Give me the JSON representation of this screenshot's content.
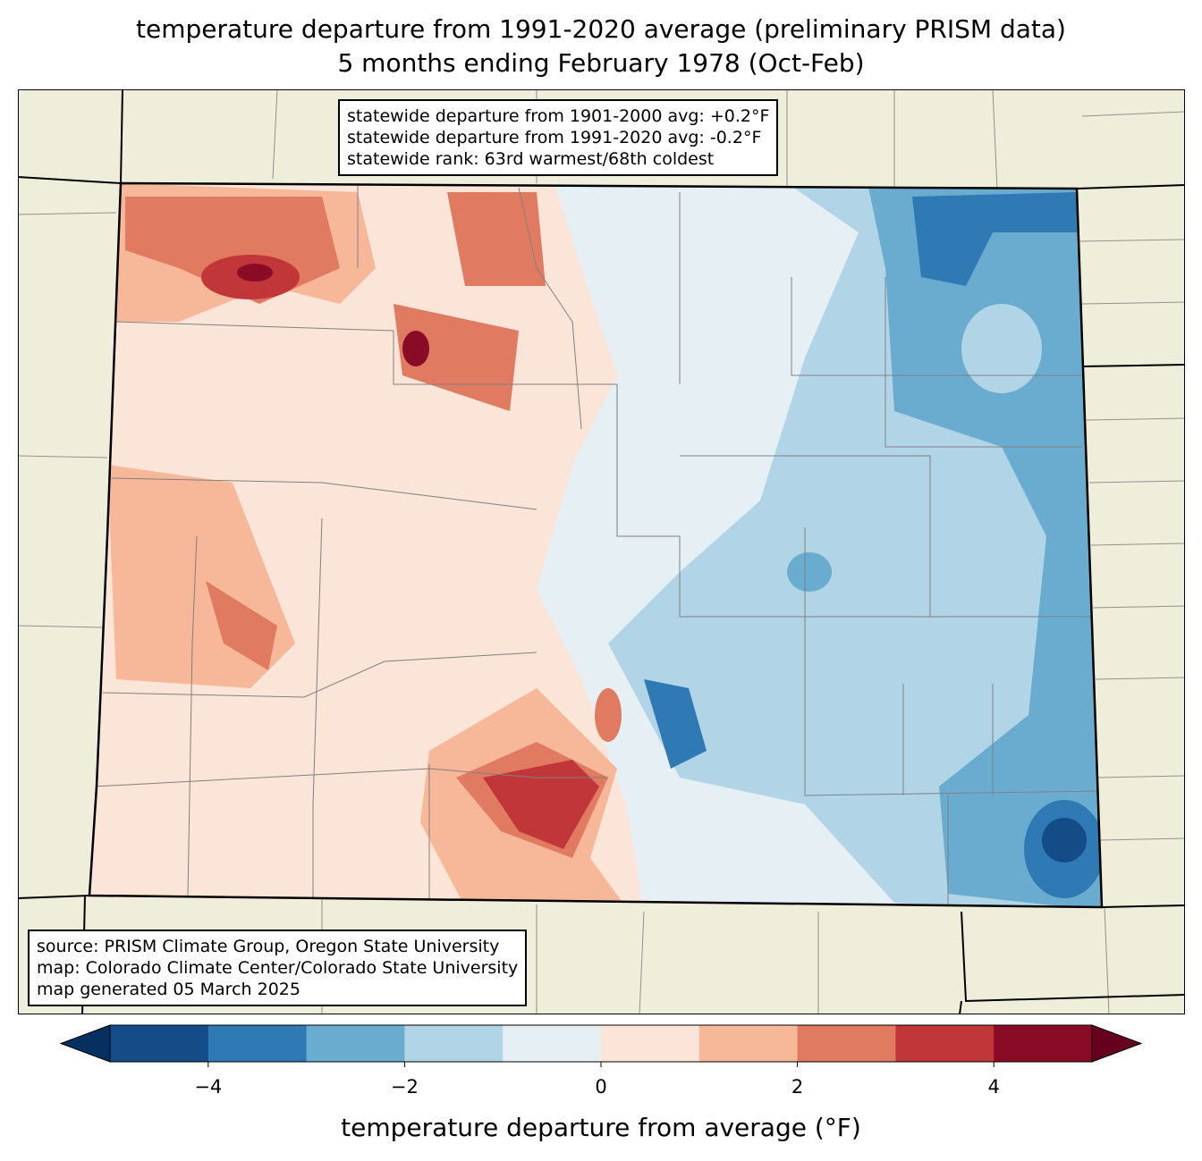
{
  "title": {
    "line1": "temperature departure from 1991-2020 average (preliminary PRISM data)",
    "line2": "5 months ending February 1978 (Oct-Feb)"
  },
  "stats_box": {
    "line1": "statewide departure from 1901-2000 avg: +0.2°F",
    "line2": "statewide departure from 1991-2020 avg: -0.2°F",
    "line3": "statewide rank: 63rd warmest/68th coldest"
  },
  "credits_box": {
    "line1": "source: PRISM Climate Group, Oregon State University",
    "line2": "map: Colorado Climate Center/Colorado State University",
    "line3": "map generated 05 March 2025"
  },
  "colorbar": {
    "label": "temperature departure from average (°F)",
    "bounds": [
      -5,
      5
    ],
    "step": 1,
    "ticks": [
      {
        "value": -4,
        "label": "−4"
      },
      {
        "value": -2,
        "label": "−2"
      },
      {
        "value": 0,
        "label": "0"
      },
      {
        "value": 2,
        "label": "2"
      },
      {
        "value": 4,
        "label": "4"
      }
    ],
    "extend_low_color": "#053061",
    "extend_high_color": "#67001f",
    "colors": [
      "#134c87",
      "#2f79b5",
      "#6aacd0",
      "#b1d5e7",
      "#e6eff4",
      "#fbe5d8",
      "#f7b799",
      "#e07b62",
      "#c13639",
      "#8a0b25"
    ]
  },
  "map_colors": {
    "land": "#efeedb",
    "border": "#000000",
    "county": "#808080"
  }
}
